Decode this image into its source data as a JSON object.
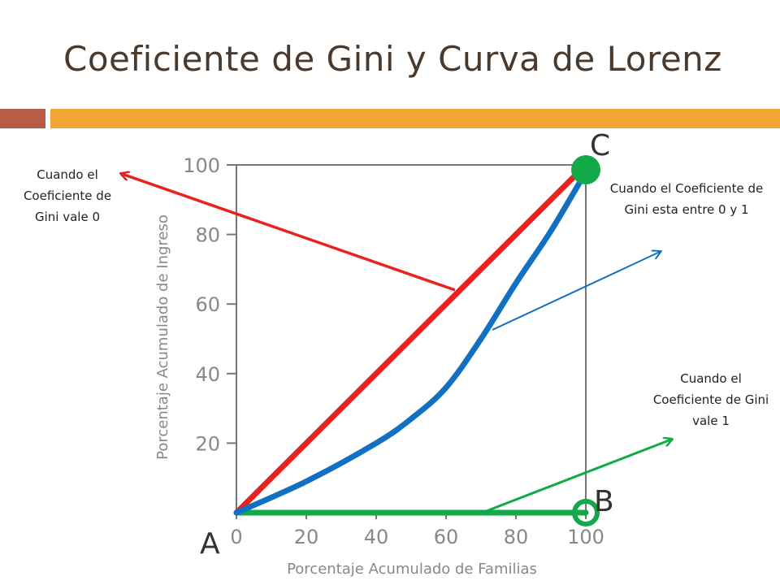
{
  "slide": {
    "title": "Coeficiente de Gini y Curva de Lorenz"
  },
  "annotations": {
    "gini_zero": "Cuando el Coeficiente de Gini vale 0",
    "gini_between": "Cuando el Coeficiente de Gini esta entre 0 y 1",
    "gini_one": "Cuando el Coeficiente de Gini vale 1"
  },
  "colors": {
    "equality": "#e8231f",
    "lorenz": "#1270c2",
    "perfect_inequality": "#13a84a",
    "title_bar_left": "#b85c45",
    "title_bar_right": "#f2a532"
  },
  "chart_data": {
    "type": "line",
    "xlabel": "Porcentaje Acumulado de Familias",
    "ylabel": "Porcentaje Acumulado de Ingreso",
    "xlim": [
      0,
      100
    ],
    "ylim": [
      0,
      100
    ],
    "x_ticks": [
      0,
      20,
      40,
      60,
      80,
      100
    ],
    "y_ticks": [
      20,
      40,
      60,
      80,
      100
    ],
    "series": [
      {
        "key": "equality",
        "x": [
          0,
          100
        ],
        "y": [
          0,
          100
        ]
      },
      {
        "key": "lorenz",
        "x": [
          0,
          20,
          40,
          50,
          60,
          70,
          80,
          90,
          100
        ],
        "y": [
          0,
          9,
          20,
          27,
          36,
          50,
          66,
          81,
          98
        ]
      },
      {
        "key": "perfect_inequality",
        "x": [
          0,
          100
        ],
        "y": [
          0,
          0
        ]
      }
    ],
    "points": [
      {
        "label": "A",
        "x": 0,
        "y": 0
      },
      {
        "label": "B",
        "x": 100,
        "y": 0
      },
      {
        "label": "C",
        "x": 100,
        "y": 100
      }
    ]
  }
}
